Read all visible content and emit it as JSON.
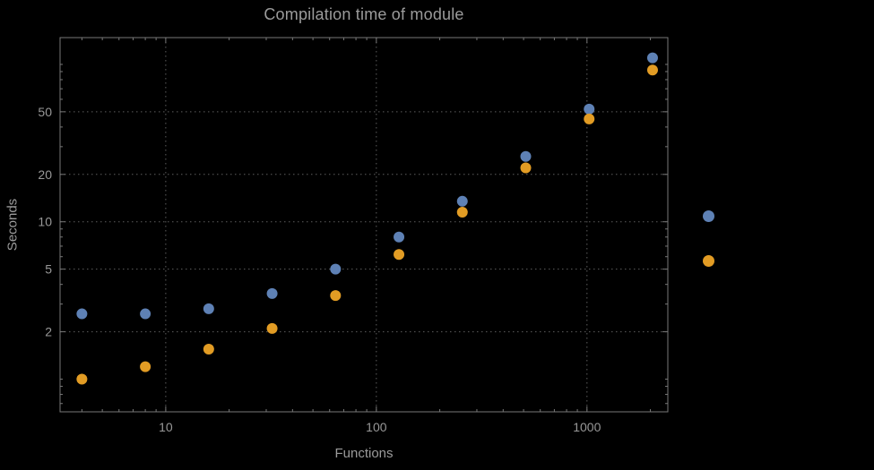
{
  "colors": {
    "background": "#000000",
    "frame": "#787878",
    "grid": "#5e5e5e",
    "tick_labels": "#989898",
    "title_text": "#9b9b9b"
  },
  "chart_data": {
    "type": "scatter",
    "title": "Compilation time of module",
    "xlabel": "Functions",
    "ylabel": "Seconds",
    "x_scale": "log",
    "y_scale": "log",
    "xlim": [
      3.15,
      2420
    ],
    "ylim": [
      0.62,
      148
    ],
    "grid": "dotted",
    "legend_position": "right-outside",
    "xticks": [
      {
        "value": 10,
        "label": "10"
      },
      {
        "value": 100,
        "label": "100"
      },
      {
        "value": 1000,
        "label": "1000"
      }
    ],
    "yticks": [
      {
        "value": 2,
        "label": "2"
      },
      {
        "value": 5,
        "label": "5"
      },
      {
        "value": 10,
        "label": "10"
      },
      {
        "value": 20,
        "label": "20"
      },
      {
        "value": 50,
        "label": "50"
      }
    ],
    "x": [
      4,
      8,
      16,
      32,
      64,
      128,
      256,
      512,
      1024,
      2048
    ],
    "series": [
      {
        "name": "blue",
        "color": "#5e81b5",
        "values": [
          2.6,
          2.6,
          2.8,
          3.5,
          5.0,
          8.0,
          13.5,
          26,
          52,
          110
        ]
      },
      {
        "name": "orange",
        "color": "#e29c24",
        "values": [
          1.0,
          1.2,
          1.55,
          2.1,
          3.4,
          6.2,
          11.5,
          22,
          45,
          92
        ]
      }
    ],
    "legend_markers": [
      {
        "color": "#5e81b5"
      },
      {
        "color": "#e29c24"
      }
    ]
  }
}
